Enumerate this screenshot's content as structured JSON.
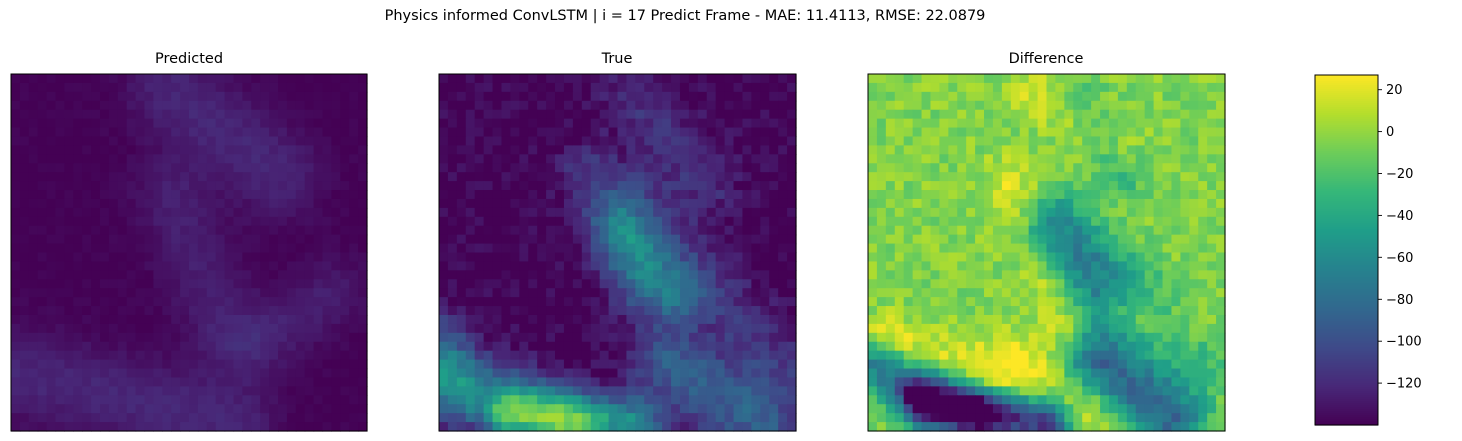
{
  "figure_title": "Physics informed ConvLSTM | i = 17 Predict Frame - MAE: 11.4113, RMSE: 22.0879",
  "chart_data": [
    {
      "type": "heatmap",
      "title": "Predicted",
      "grid_size": [
        40,
        40
      ],
      "colormap": "viridis",
      "value_range": [
        -140,
        27
      ],
      "base_value": -140,
      "features": [
        {
          "kind": "ridge",
          "from": [
            0.45,
            0.05
          ],
          "to": [
            0.75,
            0.28
          ],
          "width": 0.09,
          "value": -122
        },
        {
          "kind": "ridge",
          "from": [
            0.45,
            0.35
          ],
          "to": [
            0.6,
            0.72
          ],
          "width": 0.08,
          "value": -126
        },
        {
          "kind": "ridge",
          "from": [
            0.02,
            0.84
          ],
          "to": [
            0.62,
            0.98
          ],
          "width": 0.09,
          "value": -122
        },
        {
          "kind": "ridge",
          "from": [
            0.7,
            0.75
          ],
          "to": [
            0.9,
            0.62
          ],
          "width": 0.07,
          "value": -126
        }
      ],
      "noise_amplitude": 3
    },
    {
      "type": "heatmap",
      "title": "True",
      "grid_size": [
        40,
        40
      ],
      "colormap": "viridis",
      "value_range": [
        -140,
        27
      ],
      "base_value": -140,
      "features": [
        {
          "kind": "ridge",
          "from": [
            0.55,
            0.08
          ],
          "to": [
            0.75,
            0.3
          ],
          "width": 0.07,
          "value": -118
        },
        {
          "kind": "ridge",
          "from": [
            0.42,
            0.28
          ],
          "to": [
            0.55,
            0.6
          ],
          "width": 0.06,
          "value": -112
        },
        {
          "kind": "ridge",
          "from": [
            0.52,
            0.45
          ],
          "to": [
            0.65,
            0.62
          ],
          "width": 0.06,
          "value": -90
        },
        {
          "kind": "ridge",
          "from": [
            0.55,
            0.35
          ],
          "to": [
            0.95,
            0.82
          ],
          "width": 0.07,
          "value": -115
        },
        {
          "kind": "ridge",
          "from": [
            0.02,
            0.85
          ],
          "to": [
            0.35,
            0.97
          ],
          "width": 0.07,
          "value": -80
        },
        {
          "kind": "ridge",
          "from": [
            0.2,
            0.95
          ],
          "to": [
            0.55,
            0.98
          ],
          "width": 0.05,
          "value": -60
        },
        {
          "kind": "ridge",
          "from": [
            0.65,
            0.82
          ],
          "to": [
            0.9,
            0.98
          ],
          "width": 0.08,
          "value": -90
        },
        {
          "kind": "ridge",
          "from": [
            0.02,
            0.72
          ],
          "to": [
            0.05,
            0.92
          ],
          "width": 0.05,
          "value": -110
        }
      ],
      "noise_amplitude": 10
    },
    {
      "type": "heatmap",
      "title": "Difference",
      "grid_size": [
        40,
        40
      ],
      "colormap": "viridis",
      "value_range": [
        -140,
        27
      ],
      "base_value": -5,
      "features": [
        {
          "kind": "ridge",
          "from": [
            0.45,
            0.05
          ],
          "to": [
            0.7,
            0.2
          ],
          "width": 0.05,
          "value": 15
        },
        {
          "kind": "ridge",
          "from": [
            0.6,
            0.1
          ],
          "to": [
            0.72,
            0.28
          ],
          "width": 0.05,
          "value": -30
        },
        {
          "kind": "ridge",
          "from": [
            0.4,
            0.3
          ],
          "to": [
            0.55,
            0.7
          ],
          "width": 0.05,
          "value": 18
        },
        {
          "kind": "ridge",
          "from": [
            0.5,
            0.45
          ],
          "to": [
            0.65,
            0.62
          ],
          "width": 0.06,
          "value": -55
        },
        {
          "kind": "ridge",
          "from": [
            0.55,
            0.4
          ],
          "to": [
            0.92,
            0.78
          ],
          "width": 0.06,
          "value": -35
        },
        {
          "kind": "ridge",
          "from": [
            0.7,
            0.65
          ],
          "to": [
            0.92,
            0.72
          ],
          "width": 0.04,
          "value": 15
        },
        {
          "kind": "ridge",
          "from": [
            0.05,
            0.74
          ],
          "to": [
            0.35,
            0.86
          ],
          "width": 0.05,
          "value": 22
        },
        {
          "kind": "ridge",
          "from": [
            0.02,
            0.82
          ],
          "to": [
            0.3,
            0.95
          ],
          "width": 0.05,
          "value": -70
        },
        {
          "kind": "ridge",
          "from": [
            0.15,
            0.92
          ],
          "to": [
            0.5,
            0.98
          ],
          "width": 0.05,
          "value": -120
        },
        {
          "kind": "ridge",
          "from": [
            0.4,
            0.8
          ],
          "to": [
            0.6,
            0.95
          ],
          "width": 0.06,
          "value": 24
        },
        {
          "kind": "ridge",
          "from": [
            0.65,
            0.8
          ],
          "to": [
            0.85,
            0.96
          ],
          "width": 0.07,
          "value": -85
        }
      ],
      "noise_amplitude": 12
    }
  ],
  "colorbar": {
    "colormap": "viridis",
    "range": [
      -140,
      27
    ],
    "ticks": [
      20,
      0,
      -20,
      -40,
      -60,
      -80,
      -100,
      -120
    ],
    "tick_labels": [
      "20",
      "0",
      "−20",
      "−40",
      "−60",
      "−80",
      "−100",
      "−120"
    ]
  }
}
